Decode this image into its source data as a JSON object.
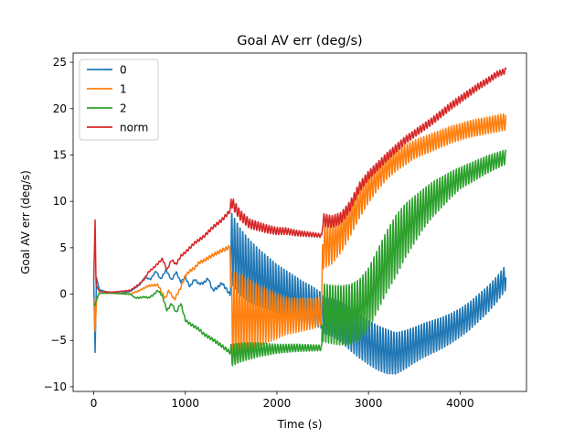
{
  "chart_data": {
    "type": "line",
    "title": "Goal AV err (deg/s)",
    "xlabel": "Time (s)",
    "ylabel": "Goal AV err (deg/s)",
    "xlim": [
      -225,
      4725
    ],
    "ylim": [
      -10.5,
      26
    ],
    "xticks": [
      0,
      1000,
      2000,
      3000,
      4000
    ],
    "yticks": [
      -10,
      -5,
      0,
      5,
      10,
      15,
      20,
      25
    ],
    "legend_position": "top-left",
    "grid": false,
    "series": [
      {
        "name": "0",
        "color": "#1f77b4",
        "points": [
          [
            0,
            1.5
          ],
          [
            15,
            -6.3
          ],
          [
            30,
            1.8
          ],
          [
            60,
            0.5
          ],
          [
            150,
            0.2
          ],
          [
            300,
            0.1
          ],
          [
            400,
            0.3
          ],
          [
            500,
            1.0
          ],
          [
            560,
            1.8
          ],
          [
            620,
            1.6
          ],
          [
            680,
            2.5
          ],
          [
            730,
            1.6
          ],
          [
            790,
            2.6
          ],
          [
            850,
            1.5
          ],
          [
            900,
            2.4
          ],
          [
            950,
            1.3
          ],
          [
            1000,
            1.8
          ],
          [
            1050,
            0.8
          ],
          [
            1100,
            1.6
          ],
          [
            1150,
            1.1
          ],
          [
            1200,
            1.2
          ],
          [
            1250,
            1.7
          ],
          [
            1300,
            0.4
          ],
          [
            1350,
            0.7
          ],
          [
            1400,
            1.2
          ],
          [
            1450,
            0.5
          ],
          [
            1490,
            -0.1
          ],
          [
            1500,
            5.0
          ],
          [
            1600,
            3.5
          ],
          [
            1700,
            2.5
          ],
          [
            1800,
            1.8
          ],
          [
            1900,
            1.2
          ],
          [
            2000,
            0.6
          ],
          [
            2100,
            0.1
          ],
          [
            2200,
            -0.4
          ],
          [
            2300,
            -0.9
          ],
          [
            2400,
            -1.3
          ],
          [
            2490,
            -1.8
          ],
          [
            2500,
            -2.3
          ],
          [
            2600,
            -2.5
          ],
          [
            2700,
            -3.0
          ],
          [
            2800,
            -3.8
          ],
          [
            2900,
            -4.5
          ],
          [
            3000,
            -5.2
          ],
          [
            3100,
            -5.8
          ],
          [
            3200,
            -6.2
          ],
          [
            3300,
            -6.4
          ],
          [
            3400,
            -6.0
          ],
          [
            3500,
            -5.5
          ],
          [
            3600,
            -5.0
          ],
          [
            3700,
            -4.6
          ],
          [
            3800,
            -4.2
          ],
          [
            3900,
            -3.7
          ],
          [
            4000,
            -3.1
          ],
          [
            4100,
            -2.4
          ],
          [
            4200,
            -1.5
          ],
          [
            4300,
            -0.6
          ],
          [
            4400,
            0.5
          ],
          [
            4500,
            1.8
          ]
        ],
        "amplitude": [
          [
            0,
            0
          ],
          [
            1490,
            0.15
          ],
          [
            1500,
            4.0
          ],
          [
            1700,
            3.5
          ],
          [
            2000,
            2.7
          ],
          [
            2490,
            2.0
          ],
          [
            2500,
            2.0
          ],
          [
            2900,
            2.5
          ],
          [
            3200,
            2.5
          ],
          [
            3500,
            2.0
          ],
          [
            4000,
            1.6
          ],
          [
            4500,
            1.4
          ]
        ]
      },
      {
        "name": "1",
        "color": "#ff7f0e",
        "points": [
          [
            0,
            -0.5
          ],
          [
            15,
            -4.0
          ],
          [
            30,
            -0.8
          ],
          [
            60,
            0.1
          ],
          [
            200,
            0.1
          ],
          [
            400,
            0.0
          ],
          [
            500,
            0.4
          ],
          [
            600,
            0.9
          ],
          [
            700,
            1.0
          ],
          [
            780,
            -0.5
          ],
          [
            820,
            0.4
          ],
          [
            880,
            -0.6
          ],
          [
            950,
            0.7
          ],
          [
            1000,
            2.0
          ],
          [
            1050,
            2.5
          ],
          [
            1100,
            2.8
          ],
          [
            1150,
            3.4
          ],
          [
            1200,
            3.6
          ],
          [
            1300,
            4.2
          ],
          [
            1400,
            4.7
          ],
          [
            1490,
            5.1
          ],
          [
            1500,
            -2.5
          ],
          [
            1600,
            -2.3
          ],
          [
            1800,
            -2.3
          ],
          [
            2000,
            -2.4
          ],
          [
            2200,
            -2.3
          ],
          [
            2400,
            -2.1
          ],
          [
            2490,
            -1.8
          ],
          [
            2500,
            5.2
          ],
          [
            2600,
            5.5
          ],
          [
            2700,
            6.5
          ],
          [
            2800,
            8.0
          ],
          [
            2900,
            9.8
          ],
          [
            3000,
            11.3
          ],
          [
            3100,
            12.5
          ],
          [
            3200,
            13.6
          ],
          [
            3300,
            14.4
          ],
          [
            3400,
            15.0
          ],
          [
            3500,
            15.6
          ],
          [
            3600,
            16.0
          ],
          [
            3700,
            16.4
          ],
          [
            3800,
            16.8
          ],
          [
            3900,
            17.2
          ],
          [
            4000,
            17.5
          ],
          [
            4100,
            17.8
          ],
          [
            4200,
            18.0
          ],
          [
            4300,
            18.2
          ],
          [
            4400,
            18.4
          ],
          [
            4500,
            18.6
          ]
        ],
        "amplitude": [
          [
            0,
            0
          ],
          [
            1490,
            0.2
          ],
          [
            1500,
            5.0
          ],
          [
            1800,
            3.3
          ],
          [
            2100,
            2.0
          ],
          [
            2490,
            1.5
          ],
          [
            2500,
            2.5
          ],
          [
            2800,
            1.8
          ],
          [
            3100,
            1.3
          ],
          [
            3500,
            1.0
          ],
          [
            4000,
            0.9
          ],
          [
            4500,
            0.9
          ]
        ]
      },
      {
        "name": "2",
        "color": "#2ca02c",
        "points": [
          [
            0,
            -1.0
          ],
          [
            15,
            -1.2
          ],
          [
            30,
            -0.5
          ],
          [
            60,
            0.1
          ],
          [
            200,
            0.1
          ],
          [
            400,
            0.0
          ],
          [
            450,
            -0.4
          ],
          [
            500,
            -0.4
          ],
          [
            550,
            -0.3
          ],
          [
            600,
            -0.4
          ],
          [
            650,
            -0.1
          ],
          [
            700,
            0.4
          ],
          [
            750,
            -0.2
          ],
          [
            800,
            -1.8
          ],
          [
            850,
            -1.0
          ],
          [
            900,
            -2.0
          ],
          [
            950,
            -1.0
          ],
          [
            1000,
            -2.8
          ],
          [
            1050,
            -3.2
          ],
          [
            1100,
            -3.5
          ],
          [
            1150,
            -3.8
          ],
          [
            1200,
            -4.3
          ],
          [
            1300,
            -4.9
          ],
          [
            1400,
            -5.6
          ],
          [
            1490,
            -6.3
          ],
          [
            1500,
            -6.6
          ],
          [
            1600,
            -6.3
          ],
          [
            1800,
            -6.0
          ],
          [
            2000,
            -5.9
          ],
          [
            2200,
            -5.8
          ],
          [
            2400,
            -5.8
          ],
          [
            2490,
            -5.8
          ],
          [
            2500,
            -2.0
          ],
          [
            2600,
            -2.2
          ],
          [
            2700,
            -2.3
          ],
          [
            2800,
            -2.2
          ],
          [
            2900,
            -1.7
          ],
          [
            3000,
            -0.5
          ],
          [
            3100,
            1.5
          ],
          [
            3200,
            3.5
          ],
          [
            3300,
            5.2
          ],
          [
            3400,
            6.8
          ],
          [
            3500,
            8.0
          ],
          [
            3600,
            9.2
          ],
          [
            3700,
            10.2
          ],
          [
            3800,
            11.0
          ],
          [
            3900,
            11.8
          ],
          [
            4000,
            12.5
          ],
          [
            4100,
            13.0
          ],
          [
            4200,
            13.5
          ],
          [
            4300,
            14.0
          ],
          [
            4400,
            14.4
          ],
          [
            4500,
            14.8
          ]
        ],
        "amplitude": [
          [
            0,
            0
          ],
          [
            1490,
            0.2
          ],
          [
            1500,
            1.2
          ],
          [
            2000,
            0.5
          ],
          [
            2490,
            0.3
          ],
          [
            2500,
            3.2
          ],
          [
            3000,
            3.4
          ],
          [
            3300,
            3.4
          ],
          [
            3600,
            2.2
          ],
          [
            4000,
            1.2
          ],
          [
            4500,
            0.8
          ]
        ]
      },
      {
        "name": "norm",
        "color": "#d62728",
        "points": [
          [
            0,
            1.5
          ],
          [
            15,
            8.0
          ],
          [
            25,
            1.0
          ],
          [
            60,
            0.3
          ],
          [
            200,
            0.2
          ],
          [
            400,
            0.4
          ],
          [
            500,
            1.1
          ],
          [
            550,
            1.6
          ],
          [
            600,
            2.4
          ],
          [
            650,
            2.8
          ],
          [
            700,
            3.3
          ],
          [
            750,
            3.8
          ],
          [
            800,
            2.6
          ],
          [
            850,
            3.7
          ],
          [
            900,
            3.2
          ],
          [
            950,
            4.1
          ],
          [
            1000,
            4.5
          ],
          [
            1100,
            5.5
          ],
          [
            1200,
            6.2
          ],
          [
            1300,
            7.2
          ],
          [
            1400,
            8.0
          ],
          [
            1490,
            9.0
          ],
          [
            1500,
            10.0
          ],
          [
            1600,
            8.5
          ],
          [
            1700,
            7.6
          ],
          [
            1800,
            7.3
          ],
          [
            1900,
            7.0
          ],
          [
            2000,
            6.8
          ],
          [
            2100,
            6.8
          ],
          [
            2200,
            6.6
          ],
          [
            2300,
            6.5
          ],
          [
            2400,
            6.4
          ],
          [
            2490,
            6.3
          ],
          [
            2500,
            8.0
          ],
          [
            2600,
            7.8
          ],
          [
            2700,
            8.2
          ],
          [
            2800,
            9.5
          ],
          [
            2900,
            11.5
          ],
          [
            3000,
            12.8
          ],
          [
            3100,
            13.8
          ],
          [
            3200,
            14.8
          ],
          [
            3300,
            15.7
          ],
          [
            3400,
            16.6
          ],
          [
            3500,
            17.3
          ],
          [
            3600,
            18.0
          ],
          [
            3700,
            18.7
          ],
          [
            3800,
            19.5
          ],
          [
            3900,
            20.3
          ],
          [
            4000,
            21.0
          ],
          [
            4100,
            21.7
          ],
          [
            4200,
            22.4
          ],
          [
            4300,
            23.0
          ],
          [
            4400,
            23.7
          ],
          [
            4500,
            24.1
          ]
        ],
        "amplitude": [
          [
            0,
            0
          ],
          [
            1490,
            0.2
          ],
          [
            1500,
            0.6
          ],
          [
            2000,
            0.4
          ],
          [
            2490,
            0.2
          ],
          [
            2500,
            0.7
          ],
          [
            3000,
            0.5
          ],
          [
            3500,
            0.4
          ],
          [
            4000,
            0.4
          ],
          [
            4500,
            0.3
          ]
        ]
      }
    ]
  }
}
